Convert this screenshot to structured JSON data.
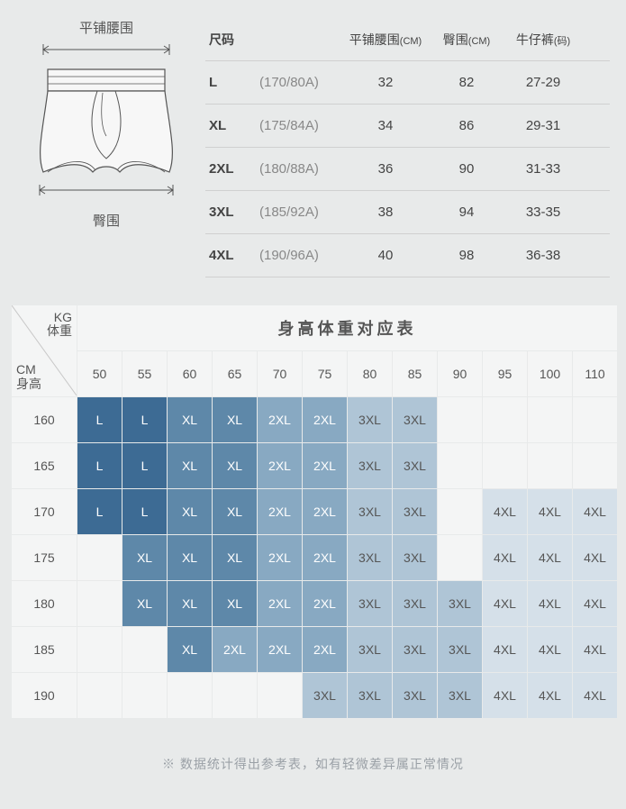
{
  "diagram": {
    "waist_label": "平铺腰围",
    "hip_label": "臀围",
    "line_color": "#555555",
    "fill_color": "#f7f7f7"
  },
  "size_table": {
    "headers": {
      "size": "尺码",
      "waist": "平铺腰围",
      "waist_unit": "(CM)",
      "hip": "臀围",
      "hip_unit": "(CM)",
      "jeans": "牛仔裤",
      "jeans_unit": "(码)"
    },
    "rows": [
      {
        "size": "L",
        "spec": "(170/80A)",
        "waist": "32",
        "hip": "82",
        "jeans": "27-29"
      },
      {
        "size": "XL",
        "spec": "(175/84A)",
        "waist": "34",
        "hip": "86",
        "jeans": "29-31"
      },
      {
        "size": "2XL",
        "spec": "(180/88A)",
        "waist": "36",
        "hip": "90",
        "jeans": "31-33"
      },
      {
        "size": "3XL",
        "spec": "(185/92A)",
        "waist": "38",
        "hip": "94",
        "jeans": "33-35"
      },
      {
        "size": "4XL",
        "spec": "(190/96A)",
        "waist": "40",
        "hip": "98",
        "jeans": "36-38"
      }
    ],
    "row_border_color": "#d0d0d0"
  },
  "matrix": {
    "title": "身高体重对应表",
    "corner": {
      "kg_label_1": "KG",
      "kg_label_2": "体重",
      "cm_label_1": "CM",
      "cm_label_2": "身高"
    },
    "weights": [
      "50",
      "55",
      "60",
      "65",
      "70",
      "75",
      "80",
      "85",
      "90",
      "95",
      "100",
      "110"
    ],
    "heights": [
      "160",
      "165",
      "170",
      "175",
      "180",
      "185",
      "190"
    ],
    "palette": {
      "L": "#3d6b94",
      "XL": "#5e88a9",
      "2XL": "#88a9c2",
      "3XL": "#afc5d6",
      "4XL": "#d5e0e9",
      "blank": "#f4f5f5"
    },
    "text_color_dark": "#555555",
    "cells": [
      [
        "L",
        "L",
        "XL",
        "XL",
        "2XL",
        "2XL",
        "3XL",
        "3XL",
        "",
        "",
        "",
        ""
      ],
      [
        "L",
        "L",
        "XL",
        "XL",
        "2XL",
        "2XL",
        "3XL",
        "3XL",
        "",
        "",
        "",
        ""
      ],
      [
        "L",
        "L",
        "XL",
        "XL",
        "2XL",
        "2XL",
        "3XL",
        "3XL",
        "",
        "4XL",
        "4XL",
        "4XL"
      ],
      [
        "",
        "XL",
        "XL",
        "XL",
        "2XL",
        "2XL",
        "3XL",
        "3XL",
        "",
        "4XL",
        "4XL",
        "4XL"
      ],
      [
        "",
        "XL",
        "XL",
        "XL",
        "2XL",
        "2XL",
        "3XL",
        "3XL",
        "3XL",
        "4XL",
        "4XL",
        "4XL"
      ],
      [
        "",
        "",
        "XL",
        "2XL",
        "2XL",
        "2XL",
        "3XL",
        "3XL",
        "3XL",
        "4XL",
        "4XL",
        "4XL"
      ],
      [
        "",
        "",
        "",
        "",
        "",
        "3XL",
        "3XL",
        "3XL",
        "3XL",
        "4XL",
        "4XL",
        "4XL"
      ]
    ]
  },
  "footnote": "※ 数据统计得出参考表，如有轻微差异属正常情况"
}
